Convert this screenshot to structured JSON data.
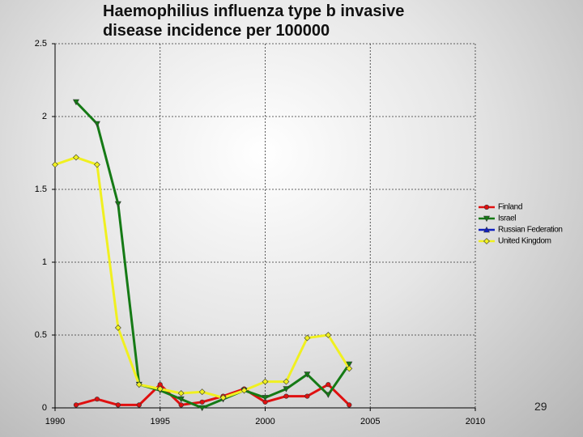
{
  "chart_data": {
    "type": "line",
    "title": "Haemophilius influenza type b invasive disease incidence per 100000",
    "x": [
      1990,
      1991,
      1992,
      1993,
      1994,
      1995,
      1996,
      1997,
      1998,
      1999,
      2000,
      2001,
      2002,
      2003,
      2004
    ],
    "series": [
      {
        "name": "Finland",
        "color": "#e01010",
        "marker": "circle",
        "values": [
          null,
          0.02,
          0.06,
          0.02,
          0.02,
          0.16,
          0.02,
          0.04,
          0.08,
          0.13,
          0.04,
          0.08,
          0.08,
          0.16,
          0.02
        ]
      },
      {
        "name": "Israel",
        "color": "#157a15",
        "marker": "triangle-down",
        "values": [
          null,
          2.1,
          1.95,
          1.4,
          0.16,
          0.12,
          0.06,
          0.0,
          0.06,
          0.12,
          0.07,
          0.13,
          0.23,
          0.09,
          0.3
        ]
      },
      {
        "name": "Russian Federation",
        "color": "#1020c0",
        "marker": "triangle-up",
        "values": [
          null,
          null,
          null,
          null,
          null,
          null,
          null,
          null,
          null,
          null,
          null,
          null,
          null,
          null,
          null
        ]
      },
      {
        "name": "United Kingdom",
        "color": "#f0f020",
        "marker": "diamond",
        "values": [
          1.67,
          1.72,
          1.67,
          0.55,
          0.16,
          0.13,
          0.1,
          0.11,
          0.07,
          0.12,
          0.18,
          0.18,
          0.48,
          0.5,
          0.27
        ]
      }
    ],
    "xlim": [
      1990,
      2010
    ],
    "xticks": [
      1990,
      1995,
      2000,
      2005,
      2010
    ],
    "ylim": [
      0,
      2.5
    ],
    "yticks": [
      0,
      0.5,
      1,
      1.5,
      2,
      2.5
    ],
    "grid": true,
    "legend": "right"
  },
  "slide_number": "29"
}
